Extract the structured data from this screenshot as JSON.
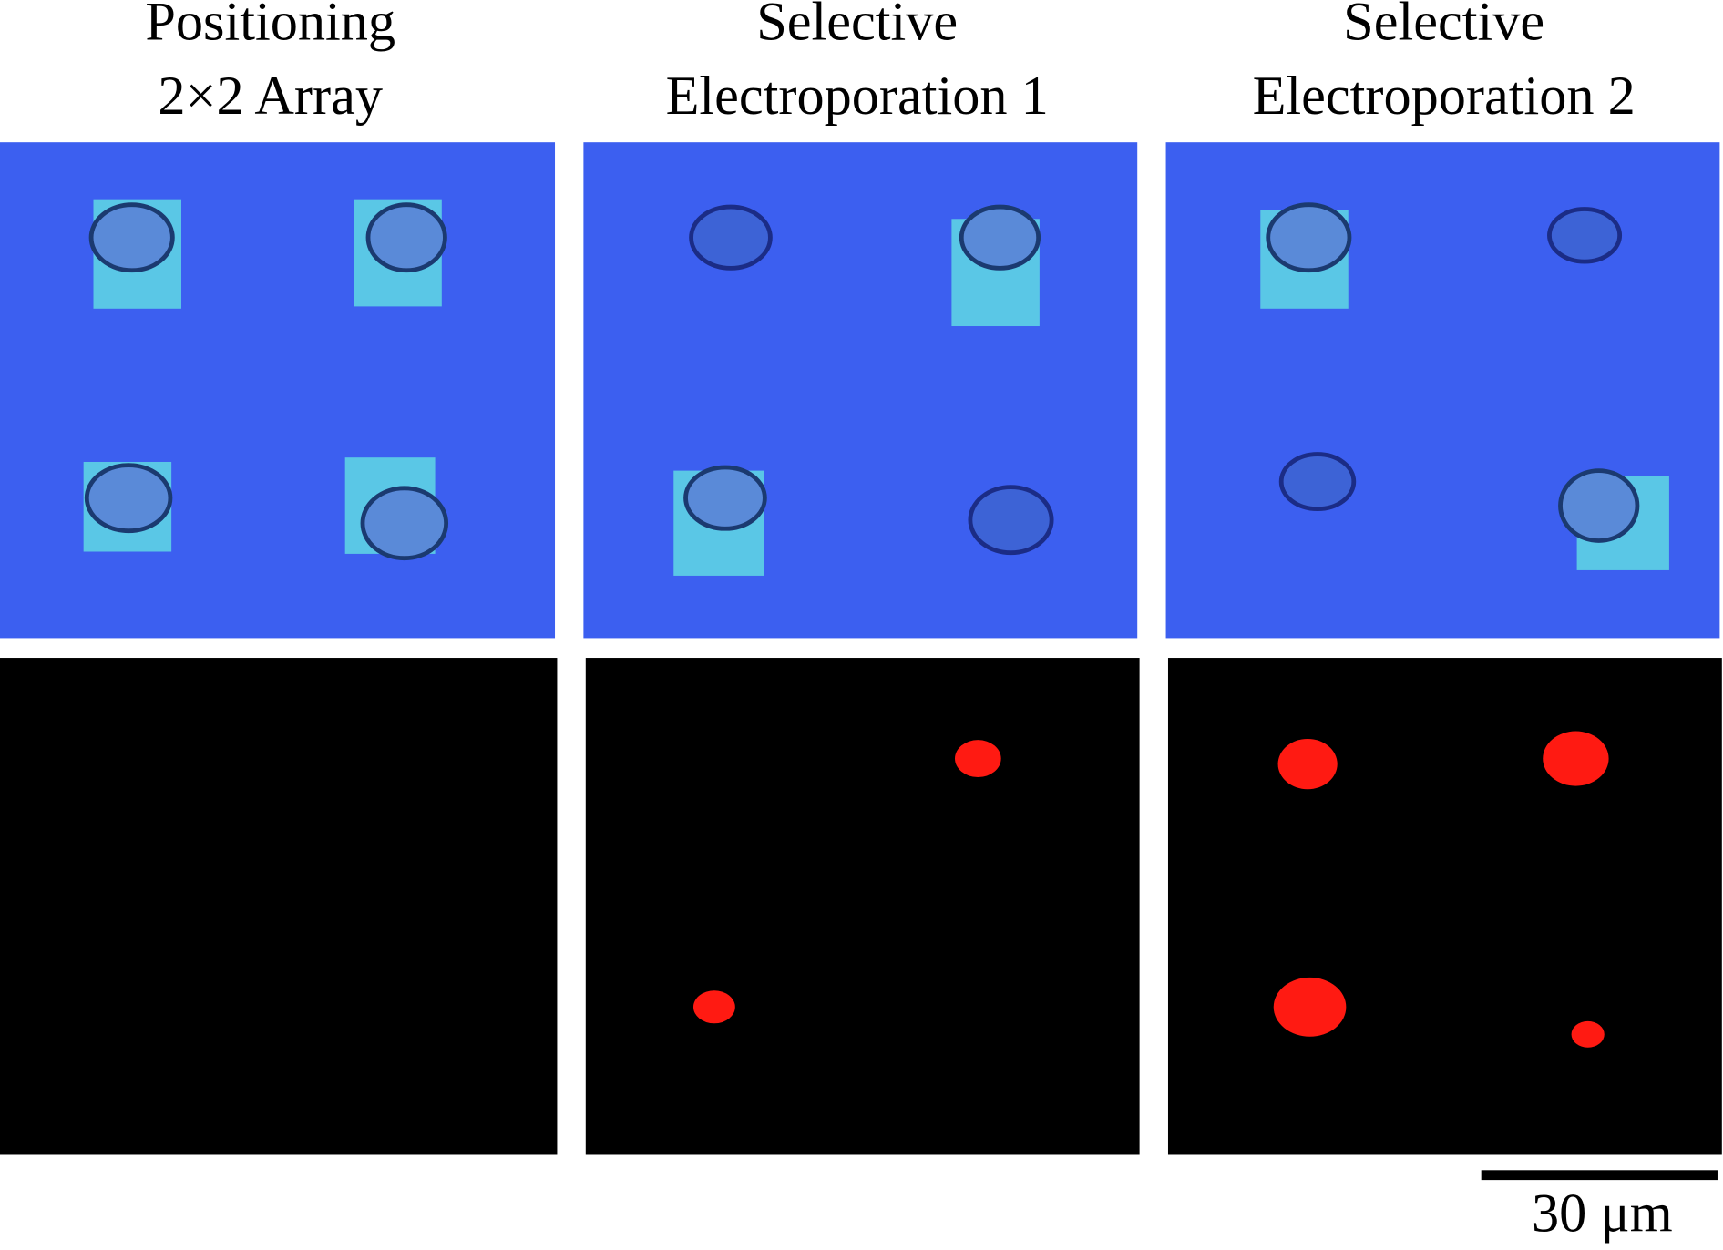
{
  "columns": [
    {
      "title_lines": [
        "Positioning",
        "2×2 Array"
      ]
    },
    {
      "title_lines": [
        "Selective",
        "Electroporation 1"
      ]
    },
    {
      "title_lines": [
        "Selective",
        "Electroporation 2"
      ]
    }
  ],
  "scale_bar": {
    "label": "30 μm"
  }
}
